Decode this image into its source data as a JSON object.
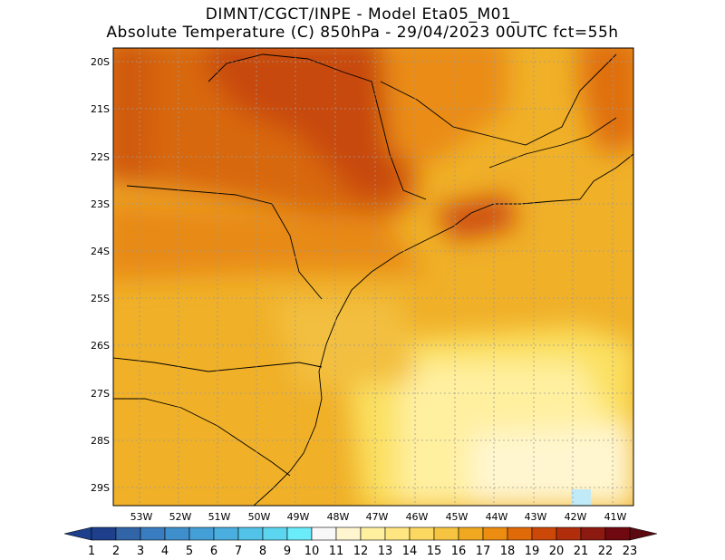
{
  "header": {
    "line1": "DIMNT/CGCT/INPE -  Model Eta05_M01_",
    "line2": "Absolute Temperature (C) 850hPa -  29/04/2023 00UTC fct=55h"
  },
  "map": {
    "lat_labels": [
      "20S",
      "21S",
      "22S",
      "23S",
      "24S",
      "25S",
      "26S",
      "27S",
      "28S",
      "29S"
    ],
    "lon_labels": [
      "53W",
      "52W",
      "51W",
      "50W",
      "49W",
      "48W",
      "47W",
      "46W",
      "45W",
      "44W",
      "43W",
      "42W",
      "41W"
    ]
  },
  "colorbar": {
    "labels": [
      "1",
      "2",
      "3",
      "4",
      "5",
      "6",
      "7",
      "8",
      "9",
      "10",
      "11",
      "12",
      "13",
      "14",
      "15",
      "16",
      "17",
      "18",
      "19",
      "20",
      "21",
      "22",
      "23"
    ],
    "colors": [
      "#1d3f8c",
      "#3264a8",
      "#3a7cc0",
      "#3f8fcc",
      "#449fd6",
      "#4aafdf",
      "#52c2e8",
      "#5cd6f0",
      "#6aecfa",
      "#f8f8f8",
      "#fff6d0",
      "#fff0a0",
      "#ffe680",
      "#fbd860",
      "#f6c440",
      "#f0a820",
      "#ec8c10",
      "#e06a08",
      "#cc4808",
      "#b02e0c",
      "#8c1a10",
      "#700810"
    ],
    "end_low": "#1d3f8c",
    "end_high": "#5a0a10"
  }
}
